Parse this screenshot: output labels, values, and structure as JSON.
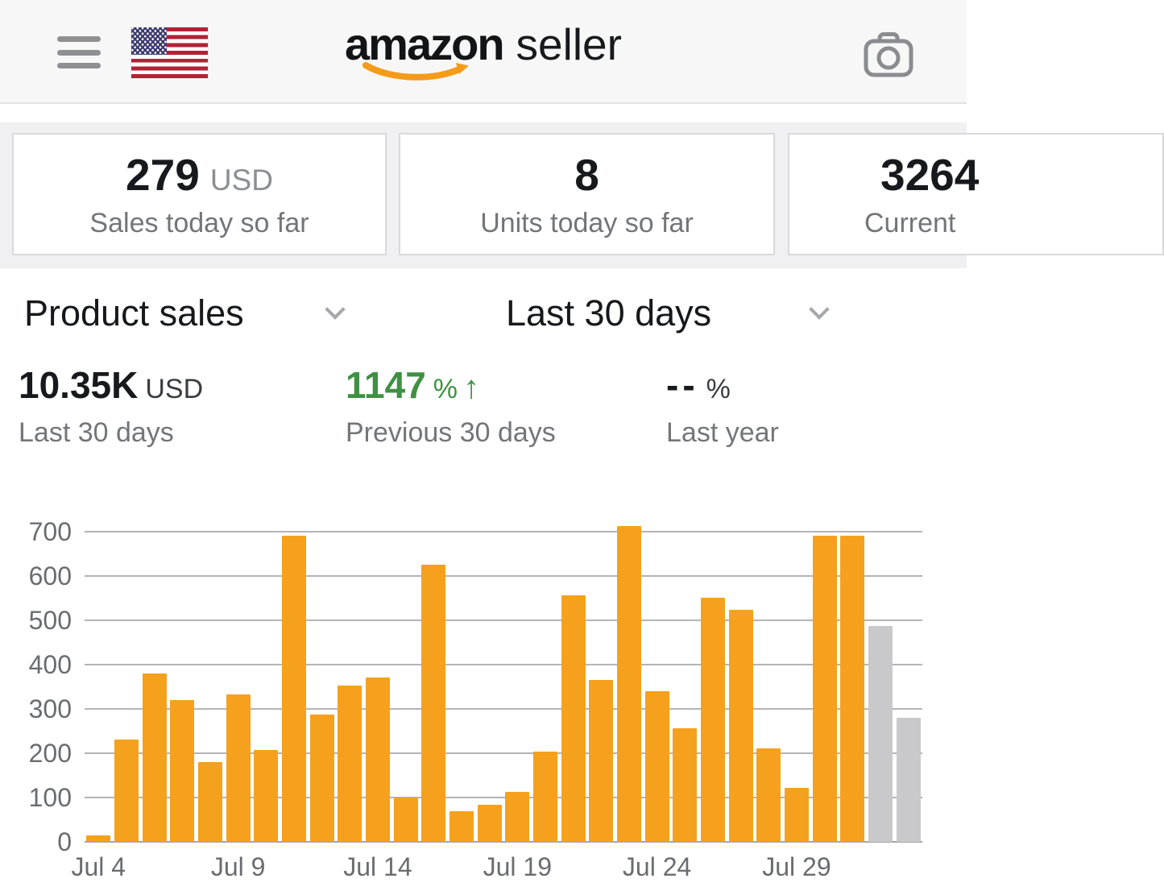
{
  "header": {
    "logo_primary": "amazon",
    "logo_secondary": "seller",
    "icons": {
      "menu": "hamburger-icon",
      "flag": "us-flag-icon",
      "camera": "camera-icon",
      "smile": "amazon-smile-icon"
    }
  },
  "stats_cards": [
    {
      "value": "279",
      "unit": "USD",
      "label": "Sales today so far"
    },
    {
      "value": "8",
      "unit": "",
      "label": "Units today so far"
    },
    {
      "value": "3264",
      "unit": "",
      "label": "Current"
    }
  ],
  "filters": {
    "metric_selector": "Product sales",
    "range_selector": "Last 30 days"
  },
  "summary": [
    {
      "value": "10.35K",
      "unit": "USD",
      "arrow": "",
      "label": "Last 30 days"
    },
    {
      "value": "1147",
      "unit": "%",
      "arrow": "↑",
      "label": "Previous 30 days"
    },
    {
      "value": "--",
      "unit": "%",
      "arrow": "",
      "label": "Last year"
    }
  ],
  "colors": {
    "accent_orange": "#f5a11e",
    "muted_gray_bar": "#c9c9cb",
    "positive_green": "#3e9142",
    "smile_orange": "#f59b1a"
  },
  "chart_data": {
    "type": "bar",
    "title": "Product sales",
    "subtitle": "Last 30 days",
    "xlabel": "",
    "ylabel": "",
    "grid": true,
    "ylim": [
      0,
      727
    ],
    "y_ticks": [
      0,
      100,
      200,
      300,
      400,
      500,
      600,
      700
    ],
    "x_tick_labels": [
      "Jul 4",
      "Jul 9",
      "Jul 14",
      "Jul 19",
      "Jul 24",
      "Jul 29"
    ],
    "x_tick_positions": [
      0,
      5,
      10,
      15,
      20,
      25
    ],
    "values": [
      15,
      230,
      380,
      320,
      180,
      333,
      207,
      690,
      288,
      352,
      370,
      100,
      625,
      70,
      83,
      113,
      203,
      557,
      365,
      713,
      340,
      256,
      550,
      523,
      210,
      122,
      690,
      690,
      487,
      280
    ],
    "bar_color": "#f5a11e",
    "muted_bar_color": "#c9c9cb",
    "muted_from_index": 28
  }
}
